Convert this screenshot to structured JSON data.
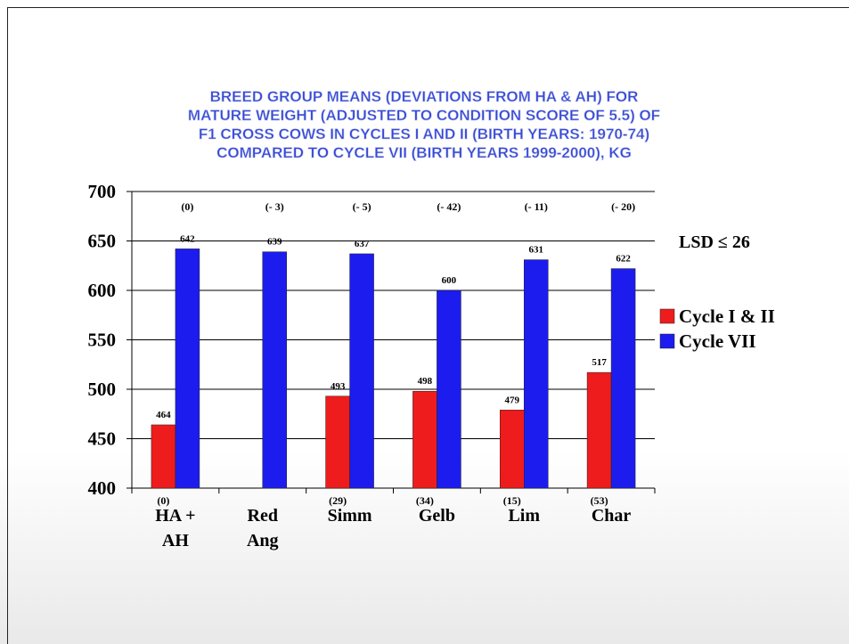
{
  "chart_data": {
    "type": "bar",
    "title": [
      "BREED GROUP MEANS (DEVIATIONS FROM HA & AH) FOR",
      "MATURE WEIGHT (ADJUSTED TO CONDITION SCORE OF 5.5) OF",
      "F1 CROSS COWS IN CYCLES I AND II (BIRTH YEARS: 1970-74)",
      "COMPARED TO CYCLE VII (BIRTH YEARS 1999-2000), KG"
    ],
    "categories": [
      "HA + AH",
      "Red Ang",
      "Simm",
      "Gelb",
      "Lim",
      "Char"
    ],
    "series": [
      {
        "name": "Cycle I & II",
        "color": "#ee1c1c",
        "values": [
          464,
          null,
          493,
          498,
          479,
          517
        ],
        "deviation_labels": [
          "(0)",
          null,
          "(29)",
          "(34)",
          "(15)",
          "(53)"
        ]
      },
      {
        "name": "Cycle VII",
        "color": "#1c1cee",
        "values": [
          642,
          639,
          637,
          600,
          631,
          622
        ],
        "deviation_labels": [
          "(0)",
          "(- 3)",
          "(- 5)",
          "(- 42)",
          "(- 11)",
          "(- 20)"
        ]
      }
    ],
    "annotation": "LSD ≤ 26",
    "ylim": [
      400,
      700
    ],
    "yticks": [
      400,
      450,
      500,
      550,
      600,
      650,
      700
    ],
    "grid": true,
    "legend": "right"
  }
}
